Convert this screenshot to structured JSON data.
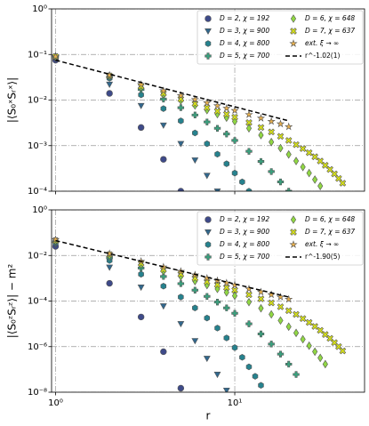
{
  "chart_data": [
    {
      "type": "scatter",
      "ylabel": "|⟨S₀ˣSᵣˣ⟩|",
      "xscale": "log",
      "yscale": "log",
      "grid": true,
      "legend": "upper right",
      "xtick_labels": false,
      "xlim": [
        0.95,
        53
      ],
      "ylim": [
        0.0001,
        1
      ],
      "xticks": [
        1,
        10
      ],
      "yticks": [
        {
          "value": 1,
          "label": "10⁰"
        },
        {
          "value": 0.1,
          "label": "10⁻¹"
        },
        {
          "value": 0.01,
          "label": "10⁻²"
        },
        {
          "value": 0.001,
          "label": "10⁻³"
        },
        {
          "value": 0.0001,
          "label": "10⁻⁴"
        }
      ],
      "series": [
        {
          "name": "D = 2, χ = 192",
          "marker": "circle",
          "color": "#3e4a89",
          "x": [
            1,
            2,
            3,
            4,
            5
          ],
          "values": [
            0.075,
            0.014,
            0.0025,
            0.0005,
            0.0001
          ]
        },
        {
          "name": "D = 3, χ = 900",
          "marker": "triangle-down",
          "color": "#31688e",
          "x": [
            1,
            2,
            3,
            4,
            5,
            6,
            7,
            8
          ],
          "values": [
            0.08,
            0.022,
            0.0075,
            0.0028,
            0.0011,
            0.00048,
            0.00022,
            0.0001
          ]
        },
        {
          "name": "D = 4, χ = 800",
          "marker": "hexagon",
          "color": "#26828e",
          "x": [
            1,
            2,
            3,
            4,
            5,
            6,
            7,
            8,
            9,
            10,
            11,
            12
          ],
          "values": [
            0.085,
            0.03,
            0.013,
            0.0065,
            0.0035,
            0.0019,
            0.0011,
            0.00065,
            0.0004,
            0.00025,
            0.00016,
            0.0001
          ]
        },
        {
          "name": "D = 5, χ = 700",
          "marker": "plus",
          "color": "#3aa17e",
          "x": [
            1,
            2,
            3,
            4,
            5,
            6,
            7,
            8,
            9,
            10,
            12,
            14,
            16,
            18,
            20
          ],
          "values": [
            0.088,
            0.032,
            0.017,
            0.0105,
            0.0068,
            0.0047,
            0.0033,
            0.0024,
            0.0018,
            0.0013,
            0.00075,
            0.00045,
            0.00027,
            0.00016,
            0.0001
          ]
        },
        {
          "name": "D = 6, χ = 648",
          "marker": "diamond",
          "color": "#90d743",
          "x": [
            1,
            2,
            3,
            4,
            5,
            6,
            7,
            8,
            9,
            10,
            12,
            14,
            16,
            18,
            20,
            22,
            24,
            26,
            28,
            30
          ],
          "values": [
            0.09,
            0.034,
            0.019,
            0.0133,
            0.0098,
            0.0076,
            0.006,
            0.0049,
            0.0041,
            0.0034,
            0.0024,
            0.0017,
            0.0012,
            0.00088,
            0.00064,
            0.00046,
            0.00034,
            0.00025,
            0.00018,
            0.00013
          ]
        },
        {
          "name": "D = 7, χ = 637",
          "marker": "x-filled",
          "color": "#d8e219",
          "x": [
            1,
            2,
            3,
            4,
            5,
            6,
            7,
            8,
            9,
            10,
            12,
            14,
            16,
            18,
            20,
            22,
            24,
            26,
            28,
            30,
            32,
            34,
            36,
            38,
            40
          ],
          "values": [
            0.09,
            0.034,
            0.02,
            0.014,
            0.0105,
            0.0083,
            0.0068,
            0.0057,
            0.0049,
            0.0042,
            0.0032,
            0.0025,
            0.002,
            0.0016,
            0.0013,
            0.00105,
            0.00086,
            0.0007,
            0.00057,
            0.00046,
            0.00037,
            0.0003,
            0.00024,
            0.00019,
            0.00015
          ]
        },
        {
          "name": "ext. ξ → ∞",
          "marker": "star",
          "color": "#e8b04d",
          "x": [
            1,
            2,
            3,
            4,
            5,
            6,
            7,
            8,
            9,
            10,
            12,
            14,
            16,
            18,
            20
          ],
          "values": [
            0.09,
            0.035,
            0.022,
            0.016,
            0.0125,
            0.0103,
            0.0087,
            0.0075,
            0.0066,
            0.0059,
            0.0048,
            0.004,
            0.0034,
            0.003,
            0.0026
          ]
        },
        {
          "name": "r^-1.02(1)",
          "marker": "line",
          "color": "#000000",
          "x": [
            1,
            20
          ],
          "values": [
            0.075,
            0.0035
          ]
        }
      ]
    },
    {
      "type": "scatter",
      "ylabel": "|⟨S₀ᶻSᵣᶻ⟩| − m²",
      "xlabel": "r",
      "xscale": "log",
      "yscale": "log",
      "grid": true,
      "legend": "upper right",
      "xtick_labels": true,
      "xlim": [
        0.95,
        53
      ],
      "ylim": [
        1e-08,
        1
      ],
      "xticks": [
        {
          "value": 1,
          "label": "10⁰"
        },
        {
          "value": 10,
          "label": "10¹"
        }
      ],
      "yticks": [
        {
          "value": 1,
          "label": "10⁰"
        },
        {
          "value": 0.01,
          "label": "10⁻²"
        },
        {
          "value": 0.0001,
          "label": "10⁻⁴"
        },
        {
          "value": 1e-06,
          "label": "10⁻⁶"
        },
        {
          "value": 1e-08,
          "label": "10⁻⁸"
        }
      ],
      "series": [
        {
          "name": "D = 2, χ = 192",
          "marker": "circle",
          "color": "#3e4a89",
          "x": [
            1,
            2,
            3,
            4,
            5
          ],
          "values": [
            0.025,
            0.0006,
            2e-05,
            6e-07,
            1.5e-08
          ]
        },
        {
          "name": "D = 3, χ = 900",
          "marker": "triangle-down",
          "color": "#31688e",
          "x": [
            1,
            2,
            3,
            4,
            5,
            6,
            7,
            8,
            9
          ],
          "values": [
            0.03,
            0.003,
            0.0004,
            6e-05,
            1e-05,
            1.8e-06,
            3e-07,
            6e-08,
            1.2e-08
          ]
        },
        {
          "name": "D = 4, χ = 800",
          "marker": "hexagon",
          "color": "#26828e",
          "x": [
            1,
            2,
            3,
            4,
            5,
            6,
            7,
            8,
            9,
            10,
            11,
            12,
            13,
            14
          ],
          "values": [
            0.035,
            0.006,
            0.0015,
            0.00045,
            0.00015,
            5e-05,
            1.8e-05,
            6.5e-06,
            2.4e-06,
            9e-07,
            3.4e-07,
            1.3e-07,
            5e-08,
            2e-08
          ]
        },
        {
          "name": "D = 5, χ = 700",
          "marker": "plus",
          "color": "#3aa17e",
          "x": [
            1,
            2,
            3,
            4,
            5,
            6,
            7,
            8,
            9,
            10,
            12,
            14,
            16,
            18,
            20,
            22
          ],
          "values": [
            0.04,
            0.008,
            0.0028,
            0.0012,
            0.00058,
            0.0003,
            0.00016,
            9e-05,
            5e-05,
            2.9e-05,
            1e-05,
            3.6e-06,
            1.3e-06,
            4.7e-07,
            1.7e-07,
            6e-08
          ]
        },
        {
          "name": "D = 6, χ = 648",
          "marker": "diamond",
          "color": "#90d743",
          "x": [
            1,
            2,
            3,
            4,
            5,
            6,
            7,
            8,
            9,
            10,
            12,
            14,
            16,
            18,
            20,
            22,
            24,
            26,
            28,
            30,
            32
          ],
          "values": [
            0.045,
            0.01,
            0.004,
            0.0021,
            0.0012,
            0.00075,
            0.0005,
            0.00034,
            0.00024,
            0.00017,
            9e-05,
            4.8e-05,
            2.6e-05,
            1.4e-05,
            7.5e-06,
            4e-06,
            2.1e-06,
            1.1e-06,
            6e-07,
            3.2e-07,
            1.7e-07
          ]
        },
        {
          "name": "D = 7, χ = 637",
          "marker": "x-filled",
          "color": "#d8e219",
          "x": [
            1,
            2,
            3,
            4,
            5,
            6,
            7,
            8,
            9,
            10,
            12,
            14,
            16,
            18,
            20,
            22,
            24,
            26,
            28,
            30,
            32,
            34,
            36,
            38,
            40
          ],
          "values": [
            0.045,
            0.011,
            0.0045,
            0.0024,
            0.0015,
            0.001,
            0.0007,
            0.00052,
            0.00039,
            0.0003,
            0.00019,
            0.000125,
            8.3e-05,
            5.6e-05,
            3.8e-05,
            2.6e-05,
            1.7e-05,
            1.15e-05,
            7.7e-06,
            5.2e-06,
            3.4e-06,
            2.3e-06,
            1.5e-06,
            1e-06,
            6.5e-07
          ]
        },
        {
          "name": "ext. ξ → ∞",
          "marker": "star",
          "color": "#e8b04d",
          "x": [
            1,
            2,
            3,
            4,
            5,
            6,
            7,
            8,
            9,
            10,
            12,
            14,
            16,
            18,
            20
          ],
          "values": [
            0.05,
            0.012,
            0.0055,
            0.0031,
            0.002,
            0.0014,
            0.001,
            0.00078,
            0.00062,
            0.0005,
            0.00034,
            0.00025,
            0.00019,
            0.00015,
            0.00012
          ]
        },
        {
          "name": "r^-1.90(5)",
          "marker": "line",
          "color": "#000000",
          "x": [
            1,
            20
          ],
          "values": [
            0.045,
            0.00015
          ]
        }
      ]
    }
  ]
}
